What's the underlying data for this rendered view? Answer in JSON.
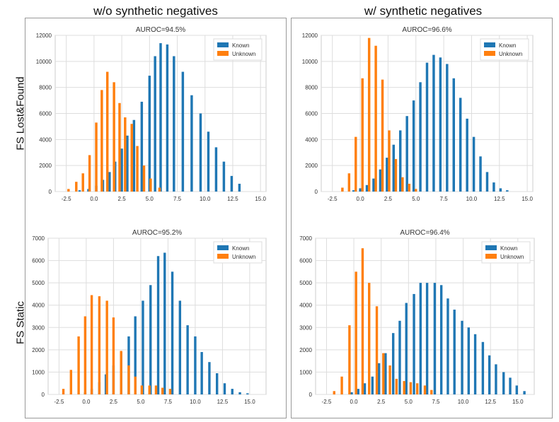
{
  "column_titles": [
    "w/o synthetic negatives",
    "w/ synthetic negatives"
  ],
  "row_labels": [
    "FS Lost&Found",
    "FS Static"
  ],
  "colors": {
    "known": "#1f77b4",
    "unknown": "#ff7f0e",
    "grid": "#dddddd"
  },
  "chart_data": [
    {
      "type": "bar",
      "title": "AUROC=94.5%",
      "legend": [
        "Known",
        "Unknown"
      ],
      "legend_position": "top-right",
      "xlim": [
        -3.5,
        15.5
      ],
      "ylim": [
        0,
        12000
      ],
      "xticks": [
        -2.5,
        0.0,
        2.5,
        5.0,
        7.5,
        10.0,
        12.5,
        15.0
      ],
      "xtick_labels": [
        "-2.5",
        "0.0",
        "2.5",
        "5.0",
        "7.5",
        "10.0",
        "12.5",
        "15.0"
      ],
      "yticks": [
        0,
        2000,
        4000,
        6000,
        8000,
        10000,
        12000
      ],
      "ytick_labels": [
        "0",
        "2000",
        "4000",
        "6000",
        "8000",
        "10000",
        "12000"
      ],
      "bar_width": 0.22,
      "series": [
        {
          "name": "Known",
          "x": [
            -1.3,
            -0.5,
            0.2,
            0.8,
            1.4,
            1.9,
            2.5,
            3.0,
            3.6,
            4.3,
            5.0,
            5.5,
            6.0,
            6.6,
            7.2,
            8.0,
            8.8,
            9.6,
            10.3,
            11.0,
            11.7,
            12.4,
            13.1
          ],
          "values": [
            100,
            200,
            450,
            900,
            1500,
            2300,
            3300,
            4300,
            5500,
            6900,
            8900,
            10400,
            11400,
            11300,
            10400,
            9200,
            7400,
            6000,
            4600,
            3400,
            2300,
            1200,
            600
          ]
        },
        {
          "name": "Unknown",
          "x": [
            -2.3,
            -1.6,
            -1.0,
            -0.4,
            0.2,
            0.7,
            1.2,
            1.8,
            2.3,
            2.8,
            3.4,
            3.9,
            4.5,
            5.1,
            5.9
          ],
          "values": [
            200,
            750,
            1400,
            2800,
            5300,
            7800,
            9200,
            8400,
            6800,
            5700,
            5200,
            3500,
            2000,
            1000,
            300
          ]
        }
      ]
    },
    {
      "type": "bar",
      "title": "AUROC=96.6%",
      "legend": [
        "Known",
        "Unknown"
      ],
      "legend_position": "top-right",
      "xlim": [
        -3.5,
        15.5
      ],
      "ylim": [
        0,
        12000
      ],
      "xticks": [
        -2.5,
        0.0,
        2.5,
        5.0,
        7.5,
        10.0,
        12.5,
        15.0
      ],
      "xtick_labels": [
        "-2.5",
        "0.0",
        "2.5",
        "5.0",
        "7.5",
        "10.0",
        "12.5",
        "15.0"
      ],
      "yticks": [
        0,
        2000,
        4000,
        6000,
        8000,
        10000,
        12000
      ],
      "ytick_labels": [
        "0",
        "2000",
        "4000",
        "6000",
        "8000",
        "10000",
        "12000"
      ],
      "bar_width": 0.22,
      "series": [
        {
          "name": "Known",
          "x": [
            -0.6,
            0.0,
            0.6,
            1.2,
            1.8,
            2.4,
            3.0,
            3.6,
            4.2,
            4.8,
            5.4,
            6.0,
            6.6,
            7.2,
            7.8,
            8.4,
            9.0,
            9.6,
            10.2,
            10.8,
            11.4,
            12.0,
            12.6,
            13.2
          ],
          "values": [
            100,
            250,
            500,
            1000,
            1700,
            2600,
            3600,
            4700,
            5800,
            7000,
            8400,
            9900,
            10500,
            10300,
            9800,
            8700,
            7200,
            5600,
            4200,
            2700,
            1500,
            700,
            250,
            100
          ]
        },
        {
          "name": "Unknown",
          "x": [
            -1.6,
            -1.0,
            -0.4,
            0.2,
            0.8,
            1.4,
            2.0,
            2.6,
            3.2,
            3.8,
            4.4,
            5.0
          ],
          "values": [
            300,
            1400,
            4200,
            8700,
            11800,
            11200,
            8600,
            4700,
            2500,
            1100,
            600,
            200
          ]
        }
      ]
    },
    {
      "type": "bar",
      "title": "AUROC=95.2%",
      "legend": [
        "Known",
        "Unknown"
      ],
      "legend_position": "top-right",
      "xlim": [
        -3.5,
        16.5
      ],
      "ylim": [
        0,
        7000
      ],
      "xticks": [
        -2.5,
        0.0,
        2.5,
        5.0,
        7.5,
        10.0,
        12.5,
        15.0
      ],
      "xtick_labels": [
        "-2.5",
        "0.0",
        "2.5",
        "5.0",
        "7.5",
        "10.0",
        "12.5",
        "15.0"
      ],
      "yticks": [
        0,
        1000,
        2000,
        3000,
        4000,
        5000,
        6000,
        7000
      ],
      "ytick_labels": [
        "0",
        "1000",
        "2000",
        "3000",
        "4000",
        "5000",
        "6000",
        "7000"
      ],
      "bar_width": 0.22,
      "series": [
        {
          "name": "Known",
          "x": [
            -0.1,
            0.5,
            1.2,
            1.8,
            2.5,
            3.2,
            3.9,
            4.5,
            5.2,
            5.9,
            6.6,
            7.2,
            7.9,
            8.6,
            9.3,
            10.0,
            10.6,
            11.3,
            12.0,
            12.7,
            13.4,
            14.1,
            14.8
          ],
          "values": [
            100,
            250,
            550,
            900,
            1300,
            1900,
            2600,
            3500,
            4200,
            4900,
            6200,
            6350,
            5500,
            4200,
            3100,
            2600,
            1900,
            1450,
            950,
            500,
            250,
            100,
            50
          ]
        },
        {
          "name": "Unknown",
          "x": [
            -2.1,
            -1.4,
            -0.7,
            -0.1,
            0.5,
            1.2,
            1.9,
            2.5,
            3.2,
            3.9,
            4.5,
            5.1,
            5.8,
            6.4,
            7.0,
            7.7
          ],
          "values": [
            250,
            1100,
            2600,
            3500,
            4450,
            4400,
            4200,
            3450,
            1950,
            1300,
            800,
            400,
            400,
            400,
            300,
            250
          ]
        }
      ]
    },
    {
      "type": "bar",
      "title": "AUROC=96.4%",
      "legend": [
        "Known",
        "Unknown"
      ],
      "legend_position": "top-right",
      "xlim": [
        -3.5,
        16.5
      ],
      "ylim": [
        0,
        7000
      ],
      "xticks": [
        -2.5,
        0.0,
        2.5,
        5.0,
        7.5,
        10.0,
        12.5,
        15.0
      ],
      "xtick_labels": [
        "-2.5",
        "0.0",
        "2.5",
        "5.0",
        "7.5",
        "10.0",
        "12.5",
        "15.0"
      ],
      "yticks": [
        0,
        1000,
        2000,
        3000,
        4000,
        5000,
        6000,
        7000
      ],
      "ytick_labels": [
        "0",
        "1000",
        "2000",
        "3000",
        "4000",
        "5000",
        "6000",
        "7000"
      ],
      "bar_width": 0.22,
      "series": [
        {
          "name": "Known",
          "x": [
            -0.2,
            0.4,
            1.0,
            1.7,
            2.3,
            2.9,
            3.6,
            4.2,
            4.8,
            5.5,
            6.1,
            6.7,
            7.4,
            8.0,
            8.6,
            9.2,
            9.9,
            10.5,
            11.1,
            11.8,
            12.4,
            13.0,
            13.7,
            14.3,
            14.9,
            15.6
          ],
          "values": [
            100,
            250,
            500,
            800,
            1400,
            1850,
            2750,
            3300,
            4100,
            4500,
            5000,
            5000,
            5000,
            4900,
            4300,
            3800,
            3300,
            3000,
            2700,
            2350,
            1750,
            1350,
            1000,
            750,
            400,
            150
          ]
        },
        {
          "name": "Unknown",
          "x": [
            -1.8,
            -1.1,
            -0.4,
            0.2,
            0.8,
            1.4,
            2.1,
            2.7,
            3.3,
            3.9,
            4.6,
            5.2,
            5.8,
            6.5,
            7.1
          ],
          "values": [
            150,
            800,
            3100,
            5500,
            6550,
            5000,
            3950,
            1850,
            1300,
            700,
            600,
            550,
            500,
            400,
            200
          ]
        }
      ]
    }
  ]
}
